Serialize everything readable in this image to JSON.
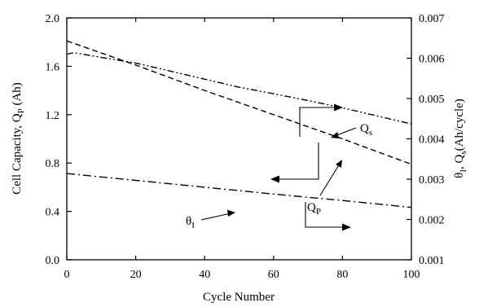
{
  "chart_data": {
    "type": "line",
    "title": "",
    "xlabel": "Cycle Number",
    "ylabel_left": {
      "main": "Cell Capacity, Q",
      "sub": "P",
      "unit": " (Ah)"
    },
    "ylabel_right": {
      "theta": "θ",
      "theta_sub": "I",
      "sep": ", Q",
      "q_sub": "s",
      "unit": "(Ah/cycle)"
    },
    "xlim": [
      0,
      100
    ],
    "ylim_left": [
      0.0,
      2.0
    ],
    "ylim_right": [
      0.001,
      0.007
    ],
    "x_ticks": [
      0,
      20,
      40,
      60,
      80,
      100
    ],
    "x_tick_labels": [
      "0",
      "20",
      "40",
      "60",
      "80",
      "100"
    ],
    "y_left_ticks": [
      0.0,
      0.4,
      0.8,
      1.2,
      1.6,
      2.0
    ],
    "y_left_tick_labels": [
      "0.0",
      "0.4",
      "0.8",
      "1.2",
      "1.6",
      "2.0"
    ],
    "y_right_ticks": [
      0.001,
      0.002,
      0.003,
      0.004,
      0.005,
      0.006,
      0.007
    ],
    "y_right_tick_labels": [
      "0.001",
      "0.002",
      "0.003",
      "0.004",
      "0.005",
      "0.006",
      "0.007"
    ],
    "grid": false,
    "series": [
      {
        "key": "qp",
        "name": "Q",
        "name_sub": "P",
        "axis": "left",
        "dash": "dashed",
        "x": [
          0,
          20,
          40,
          60,
          80,
          100
        ],
        "values": [
          1.81,
          1.61,
          1.4,
          1.2,
          1.0,
          0.79
        ]
      },
      {
        "key": "qs",
        "name": "Q",
        "name_sub": "s",
        "axis": "right",
        "dash": "dash-dot-dot",
        "x": [
          0,
          2,
          10,
          20,
          30,
          40,
          50,
          60,
          70,
          80,
          90,
          100
        ],
        "values": [
          0.0061,
          0.00614,
          0.00602,
          0.00588,
          0.00568,
          0.00548,
          0.00528,
          0.00512,
          0.00495,
          0.00477,
          0.00457,
          0.00437
        ]
      },
      {
        "key": "theta",
        "name": "θ",
        "name_sub": "I",
        "axis": "right",
        "dash": "dash-dot",
        "x": [
          0,
          20,
          40,
          60,
          80,
          100
        ],
        "values": [
          0.00314,
          0.00297,
          0.0028,
          0.00263,
          0.00247,
          0.0023
        ]
      }
    ]
  }
}
